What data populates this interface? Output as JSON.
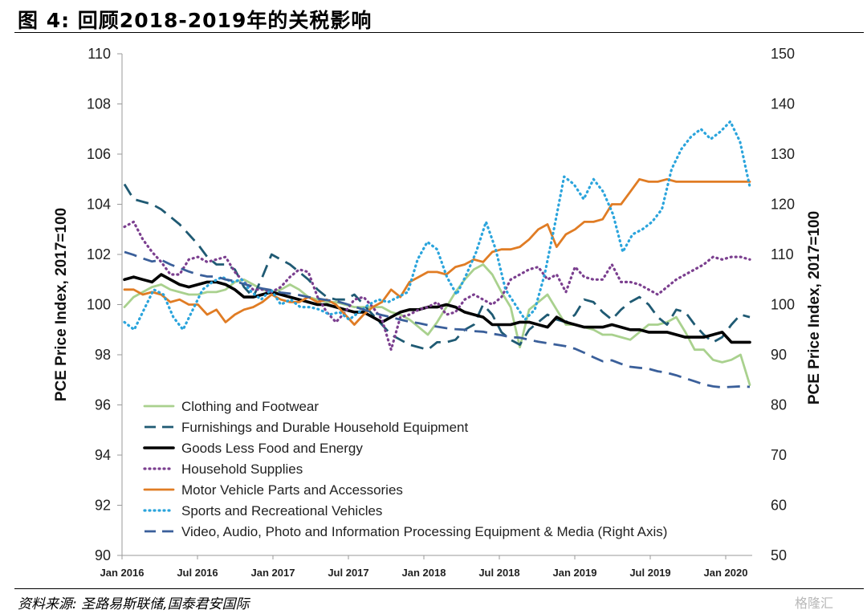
{
  "header": {
    "title": "图 4:  回顾2018-2019年的关税影响"
  },
  "footer": {
    "source": "资料来源:  圣路易斯联储,国泰君安国际",
    "watermark": "格隆汇"
  },
  "chart_data": {
    "type": "line",
    "ylabel": "PCE Price Index, 2017=100",
    "y2label": "PCE Price Index, 2017=100",
    "ylim": [
      90,
      110
    ],
    "y2lim": [
      50,
      150
    ],
    "yticks": [
      "90",
      "92",
      "94",
      "96",
      "98",
      "100",
      "102",
      "104",
      "106",
      "108",
      "110"
    ],
    "y2ticks": [
      "50",
      "60",
      "70",
      "80",
      "90",
      "100",
      "110",
      "120",
      "130",
      "140",
      "150"
    ],
    "xticks": [
      "Jan 2016",
      "Jul 2016",
      "Jan 2017",
      "Jul 2017",
      "Jan 2018",
      "Jul 2018",
      "Jan 2019",
      "Jul 2019",
      "Jan 2020"
    ],
    "x_start": "Jan 2016",
    "x_end": "Apr 2020",
    "series": [
      {
        "name": "Clothing and Footwear",
        "axis": "left",
        "color": "#a9d18e",
        "style": "solid",
        "values": [
          99.9,
          100.3,
          100.5,
          100.7,
          100.8,
          100.6,
          100.5,
          100.4,
          100.4,
          100.5,
          100.5,
          100.6,
          100.9,
          101.0,
          100.8,
          100.6,
          100.5,
          100.6,
          100.8,
          100.6,
          100.3,
          100.2,
          100.1,
          100.1,
          100.0,
          99.9,
          99.9,
          99.9,
          99.9,
          99.7,
          99.6,
          99.4,
          99.1,
          98.8,
          99.3,
          99.9,
          100.5,
          101.0,
          101.4,
          101.6,
          101.2,
          100.5,
          99.9,
          98.3,
          99.8,
          100.1,
          100.4,
          99.8,
          99.2,
          99.2,
          99.1,
          99.0,
          98.8,
          98.8,
          98.7,
          98.6,
          98.9,
          99.2,
          99.2,
          99.3,
          99.5,
          98.9,
          98.2,
          98.2,
          97.8,
          97.7,
          97.8,
          98.0,
          96.8
        ]
      },
      {
        "name": "Furnishings and Durable Household Equipment",
        "axis": "left",
        "color": "#1f5a73",
        "style": "dash",
        "values": [
          104.8,
          104.2,
          104.1,
          104.0,
          103.8,
          103.5,
          103.2,
          102.8,
          102.4,
          101.9,
          101.6,
          101.6,
          101.4,
          100.7,
          100.3,
          101.1,
          102.0,
          101.8,
          101.6,
          101.3,
          101.0,
          100.6,
          100.3,
          100.2,
          100.2,
          100.4,
          100.0,
          99.6,
          99.2,
          98.8,
          98.6,
          98.4,
          98.3,
          98.2,
          98.5,
          98.5,
          98.6,
          99.0,
          99.2,
          100.0,
          99.6,
          98.9,
          98.6,
          98.4,
          99.0,
          99.3,
          99.6,
          99.4,
          99.3,
          99.6,
          100.2,
          100.1,
          99.7,
          99.4,
          99.8,
          100.1,
          100.3,
          100.0,
          99.5,
          99.2,
          99.8,
          99.7,
          99.2,
          98.8,
          98.5,
          98.7,
          99.2,
          99.6,
          99.5
        ]
      },
      {
        "name": "Goods Less Food and Energy",
        "axis": "left",
        "color": "#000000",
        "style": "solid",
        "values": [
          101.0,
          101.1,
          101.0,
          100.9,
          101.2,
          101.0,
          100.8,
          100.7,
          100.8,
          100.9,
          100.9,
          100.8,
          100.6,
          100.3,
          100.3,
          100.4,
          100.5,
          100.4,
          100.3,
          100.2,
          100.1,
          100.0,
          100.0,
          99.9,
          99.8,
          99.7,
          99.7,
          99.5,
          99.3,
          99.5,
          99.7,
          99.8,
          99.8,
          99.9,
          99.9,
          100.0,
          99.9,
          99.7,
          99.6,
          99.5,
          99.2,
          99.2,
          99.2,
          99.3,
          99.3,
          99.2,
          99.1,
          99.5,
          99.3,
          99.2,
          99.1,
          99.1,
          99.1,
          99.2,
          99.1,
          99.0,
          99.0,
          98.9,
          98.9,
          98.9,
          98.8,
          98.7,
          98.7,
          98.7,
          98.8,
          98.9,
          98.5,
          98.5,
          98.5
        ]
      },
      {
        "name": "Household Supplies",
        "axis": "left",
        "color": "#7b3f8f",
        "style": "dot",
        "values": [
          103.1,
          103.3,
          102.6,
          102.1,
          101.7,
          101.2,
          101.2,
          101.8,
          101.9,
          101.7,
          101.8,
          101.9,
          101.3,
          100.9,
          100.6,
          100.6,
          100.5,
          100.7,
          101.1,
          101.4,
          101.3,
          100.3,
          99.7,
          99.3,
          99.7,
          100.2,
          100.3,
          99.9,
          99.4,
          98.2,
          99.5,
          99.6,
          99.8,
          99.9,
          100.1,
          99.6,
          99.7,
          100.2,
          100.4,
          100.2,
          100.0,
          100.3,
          101.0,
          101.2,
          101.4,
          101.5,
          101.0,
          101.2,
          100.5,
          101.5,
          101.1,
          101.0,
          101.0,
          101.6,
          100.9,
          100.9,
          100.8,
          100.6,
          100.4,
          100.7,
          101.0,
          101.2,
          101.4,
          101.6,
          101.9,
          101.8,
          101.9,
          101.9,
          101.8
        ]
      },
      {
        "name": "Motor Vehicle Parts and Accessories",
        "axis": "left",
        "color": "#e07c24",
        "style": "solid",
        "values": [
          100.6,
          100.6,
          100.4,
          100.5,
          100.4,
          100.1,
          100.2,
          100.0,
          100.0,
          99.6,
          99.8,
          99.3,
          99.6,
          99.8,
          99.9,
          100.1,
          100.4,
          100.2,
          100.1,
          100.1,
          100.3,
          100.1,
          100.2,
          100.0,
          99.6,
          99.2,
          99.6,
          99.9,
          100.1,
          100.6,
          100.3,
          100.9,
          101.1,
          101.3,
          101.3,
          101.2,
          101.5,
          101.6,
          101.8,
          101.7,
          102.1,
          102.2,
          102.2,
          102.3,
          102.6,
          103.0,
          103.2,
          102.3,
          102.8,
          103.0,
          103.3,
          103.3,
          103.4,
          104.0,
          104.0,
          104.5,
          105.0,
          104.9,
          104.9,
          105.0,
          104.9,
          104.9,
          104.9,
          104.9,
          104.9,
          104.9,
          104.9,
          104.9,
          104.9
        ]
      },
      {
        "name": "Sports and Recreational Vehicles",
        "axis": "left",
        "color": "#2aa4dc",
        "style": "dot",
        "values": [
          99.3,
          99.0,
          99.8,
          100.6,
          100.4,
          99.5,
          99.0,
          99.8,
          100.6,
          100.9,
          101.1,
          100.9,
          101.0,
          100.5,
          100.2,
          100.6,
          100.0,
          100.2,
          99.9,
          99.9,
          99.8,
          99.6,
          99.7,
          99.4,
          99.7,
          100.0,
          100.2,
          100.1,
          100.3,
          100.5,
          101.8,
          102.5,
          102.2,
          101.1,
          100.4,
          101.2,
          102.1,
          103.3,
          102.2,
          100.6,
          100.0,
          99.4,
          99.8,
          101.2,
          103.1,
          105.1,
          104.8,
          104.2,
          105.0,
          104.5,
          103.6,
          102.1,
          102.8,
          103.0,
          103.3,
          103.8,
          105.4,
          106.2,
          106.7,
          107.0,
          106.6,
          106.9,
          107.3,
          106.5,
          104.7
        ]
      },
      {
        "name": "Video, Audio, Photo and Information Processing Equipment & Media (Right Axis)",
        "axis": "right",
        "color": "#3a5f9a",
        "style": "dash",
        "values": [
          110.5,
          109.9,
          109.2,
          108.6,
          108.9,
          108.0,
          107.3,
          106.6,
          106.0,
          105.6,
          105.6,
          105.0,
          104.7,
          104.1,
          103.6,
          103.2,
          102.9,
          102.4,
          102.2,
          101.9,
          101.5,
          101.2,
          100.9,
          100.7,
          100.2,
          99.6,
          99.0,
          98.4,
          97.9,
          97.5,
          97.0,
          96.6,
          96.3,
          95.9,
          95.6,
          95.3,
          95.1,
          95.0,
          94.7,
          94.6,
          94.2,
          93.9,
          93.5,
          93.4,
          93.0,
          92.6,
          92.3,
          92.0,
          91.7,
          91.2,
          90.4,
          89.5,
          88.7,
          88.9,
          88.2,
          87.6,
          87.4,
          87.2,
          86.7,
          86.4,
          85.9,
          85.3,
          84.7,
          84.1,
          83.7,
          83.5,
          83.6,
          83.7,
          83.6
        ]
      }
    ]
  }
}
